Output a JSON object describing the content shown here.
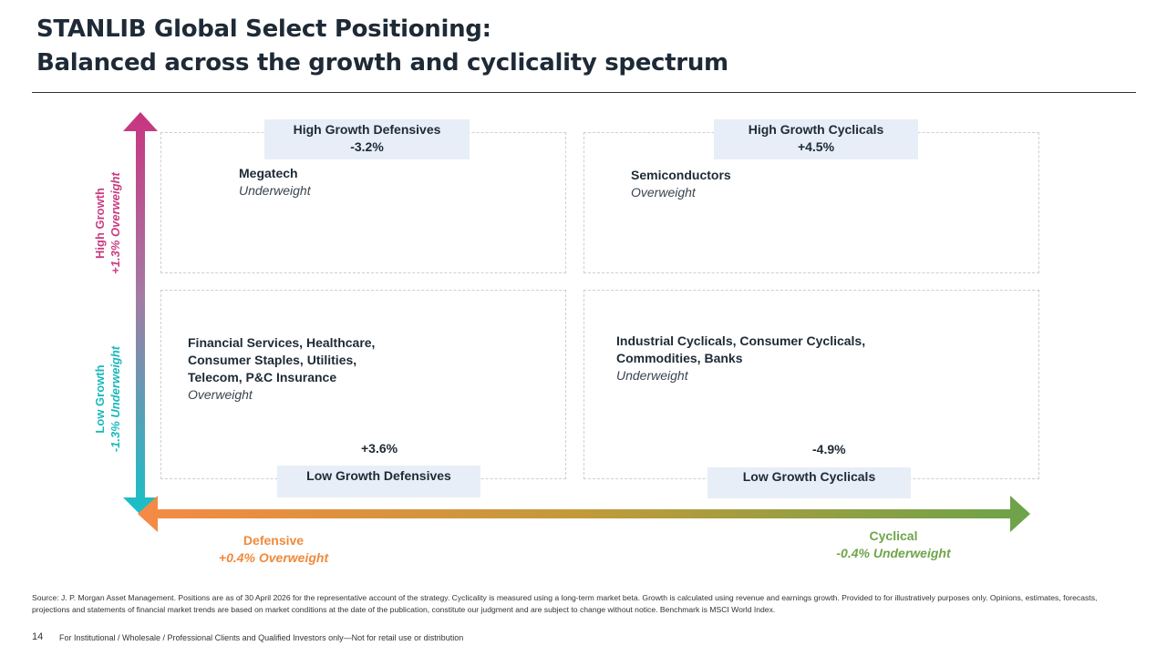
{
  "title": {
    "line1": "STANLIB Global Select Positioning:",
    "line2": "Balanced across the growth and cyclicality spectrum"
  },
  "axes": {
    "vertical": {
      "top": {
        "label": "High Growth",
        "value": "+1.3% Overweight"
      },
      "bottom": {
        "label": "Low Growth",
        "value": "-1.3% Underweight"
      }
    },
    "horizontal": {
      "left": {
        "label": "Defensive",
        "value": "+0.4% Overweight"
      },
      "right": {
        "label": "Cyclical",
        "value": "-0.4% Underweight"
      }
    },
    "colors": {
      "vertical_top": "#c8347f",
      "vertical_bottom": "#16c1c8",
      "horizontal_left": "#f58a45",
      "horizontal_right": "#6ca34a"
    }
  },
  "quadrants": {
    "top_left": {
      "label": "High Growth Defensives",
      "value": "-3.2%",
      "lines": [
        "Megatech"
      ],
      "position": "Underweight"
    },
    "top_right": {
      "label": "High Growth Cyclicals",
      "value": "+4.5%",
      "lines": [
        "Semiconductors"
      ],
      "position": "Overweight"
    },
    "bottom_left": {
      "label": "Low Growth Defensives",
      "value": "+3.6%",
      "lines": [
        "Financial Services, Healthcare,",
        "Consumer Staples, Utilities,",
        "Telecom, P&C Insurance"
      ],
      "position": "Overweight"
    },
    "bottom_right": {
      "label": "Low Growth Cyclicals",
      "value": "-4.9%",
      "lines": [
        "Industrial Cyclicals, Consumer Cyclicals,",
        "Commodities, Banks"
      ],
      "position": "Underweight"
    }
  },
  "source": "Source: J. P. Morgan Asset Management. Positions are as of 30 April 2026 for the representative account of the strategy. Cyclicality is measured using a long-term market beta. Growth is calculated using revenue and earnings growth. Provided to for illustratively purposes only. Opinions, estimates, forecasts, projections and statements of financial market trends are based on market conditions at the date of the publication, constitute our judgment and are subject to change without notice. Benchmark is MSCI World Index.",
  "page_number": "14",
  "footer": "For Institutional / Wholesale / Professional Clients and Qualified Investors only—Not for retail use or distribution"
}
